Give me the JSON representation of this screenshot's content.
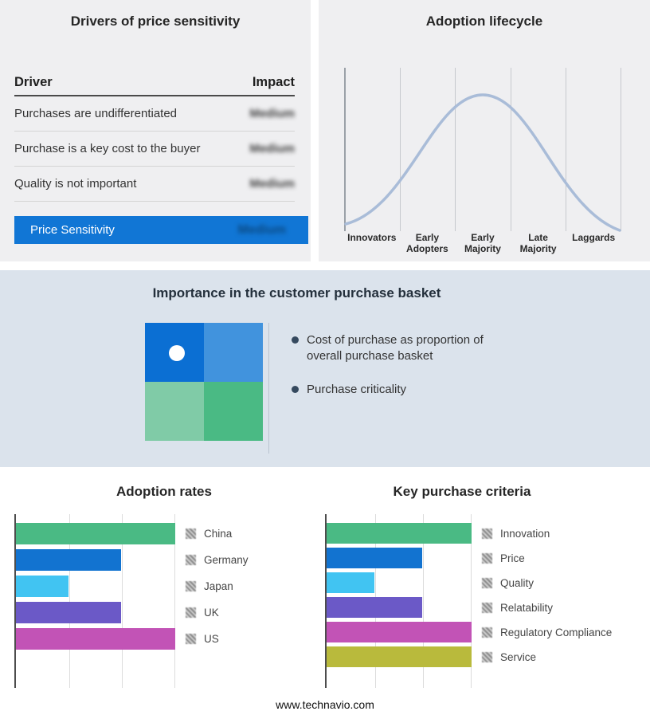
{
  "page": {
    "footer": "www.technavio.com"
  },
  "colors": {
    "accent_blue": "#1176d5",
    "panel_gray": "#efeff1",
    "band_blue": "#dbe3ec",
    "curve_blue": "#a9bcd8",
    "bullet_dark": "#35495e",
    "quadrant": [
      "#0b6fd3",
      "#4193dd",
      "#80cba7",
      "#4aba84"
    ]
  },
  "drivers_panel": {
    "title": "Drivers of price sensitivity",
    "columns": {
      "driver": "Driver",
      "impact": "Impact"
    },
    "rows": [
      {
        "driver": "Purchases are undifferentiated",
        "impact": "Medium",
        "impact_redacted": true
      },
      {
        "driver": "Purchase is a key cost to the buyer",
        "impact": "Medium",
        "impact_redacted": true
      },
      {
        "driver": "Quality is not important",
        "impact": "Medium",
        "impact_redacted": true
      }
    ],
    "highlight": {
      "label": "Price Sensitivity",
      "impact": "Medium",
      "impact_redacted": true
    }
  },
  "lifecycle_panel": {
    "title": "Adoption lifecycle",
    "stages": [
      "Innovators",
      "Early Adopters",
      "Early Majority",
      "Late Majority",
      "Laggards"
    ]
  },
  "basket_panel": {
    "title": "Importance in the customer purchase basket",
    "bullets": [
      "Cost of purchase as proportion of overall purchase basket",
      "Purchase criticality"
    ]
  },
  "chart_data": [
    {
      "type": "table",
      "title": "Drivers of price sensitivity",
      "columns": [
        "Driver",
        "Impact"
      ],
      "rows": [
        [
          "Purchases are undifferentiated",
          "Medium (blurred)"
        ],
        [
          "Purchase is a key cost to the buyer",
          "Medium (blurred)"
        ],
        [
          "Quality is not important",
          "Medium (blurred)"
        ],
        [
          "Price Sensitivity",
          "Medium (blurred)"
        ]
      ]
    },
    {
      "type": "area",
      "title": "Adoption lifecycle",
      "categories": [
        "Innovators",
        "Early Adopters",
        "Early Majority",
        "Late Majority",
        "Laggards"
      ],
      "curve": "bell",
      "peak_category": "Early Majority",
      "relative_heights_pct": [
        8,
        55,
        100,
        55,
        8
      ],
      "y_axis_labels": [],
      "grid": "vertical-lines"
    },
    {
      "type": "bar",
      "title": "Adoption rates",
      "orientation": "horizontal",
      "categories": [
        "China",
        "Germany",
        "Japan",
        "UK",
        "US"
      ],
      "values_pct_of_max": [
        100,
        66,
        33,
        66,
        100
      ],
      "colors": [
        "#4aba84",
        "#1273d0",
        "#41c4f2",
        "#6b59c7",
        "#c253b6"
      ],
      "axis_tick_labels": [],
      "legend_position": "right",
      "legend_swatches": "blurred"
    },
    {
      "type": "bar",
      "title": "Key purchase criteria",
      "orientation": "horizontal",
      "categories": [
        "Innovation",
        "Price",
        "Quality",
        "Relatability",
        "Regulatory Compliance",
        "Service"
      ],
      "values_pct_of_max": [
        100,
        66,
        33,
        66,
        100,
        100
      ],
      "colors": [
        "#4aba84",
        "#1273d0",
        "#41c4f2",
        "#6b59c7",
        "#c253b6",
        "#b9ba3c"
      ],
      "axis_tick_labels": [],
      "legend_position": "right",
      "legend_swatches": "blurred"
    }
  ]
}
